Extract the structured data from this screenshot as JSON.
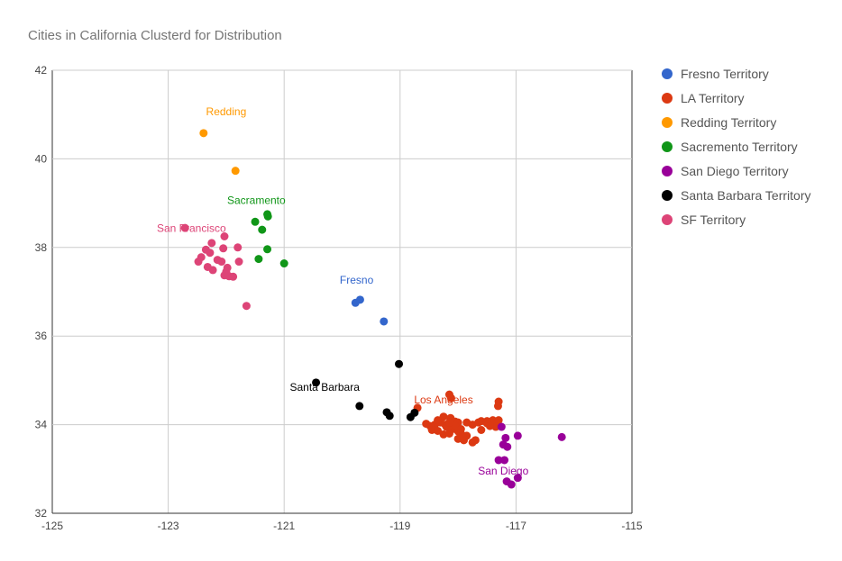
{
  "chart_data": {
    "type": "scatter",
    "title": "Cities in California Clusterd for Distribution",
    "xlabel": "",
    "ylabel": "",
    "xlim": [
      -125,
      -115
    ],
    "ylim": [
      32,
      42
    ],
    "x_ticks": [
      "-125",
      "-123",
      "-121",
      "-119",
      "-117",
      "-115"
    ],
    "y_ticks": [
      "32",
      "34",
      "36",
      "38",
      "40",
      "42"
    ],
    "x_tick_values": [
      -125,
      -123,
      -121,
      -119,
      -117,
      -115
    ],
    "y_tick_values": [
      32,
      34,
      36,
      38,
      40,
      42
    ],
    "grid": true,
    "legend_position": "right",
    "series": [
      {
        "name": "Fresno Territory",
        "color": "#3366cc",
        "label": "Fresno",
        "label_at": [
          -119.75,
          37.18
        ],
        "points": [
          [
            -119.77,
            36.75
          ],
          [
            -119.69,
            36.82
          ],
          [
            -119.28,
            36.33
          ]
        ]
      },
      {
        "name": "LA Territory",
        "color": "#dc3912",
        "label": "Los Angeles",
        "label_at": [
          -118.25,
          34.48
        ],
        "points": [
          [
            -118.15,
            34.68
          ],
          [
            -118.12,
            34.6
          ],
          [
            -118.7,
            34.38
          ],
          [
            -117.3,
            34.52
          ],
          [
            -117.31,
            34.42
          ],
          [
            -118.25,
            34.18
          ],
          [
            -118.13,
            34.15
          ],
          [
            -118.05,
            34.07
          ],
          [
            -118.3,
            34.05
          ],
          [
            -118.22,
            34.0
          ],
          [
            -118.4,
            34.0
          ],
          [
            -118.48,
            33.97
          ],
          [
            -118.55,
            34.02
          ],
          [
            -118.45,
            33.88
          ],
          [
            -118.35,
            33.86
          ],
          [
            -118.2,
            33.95
          ],
          [
            -118.1,
            33.9
          ],
          [
            -118.0,
            33.85
          ],
          [
            -117.95,
            33.8
          ],
          [
            -117.85,
            33.75
          ],
          [
            -117.9,
            33.65
          ],
          [
            -118.0,
            33.68
          ],
          [
            -117.75,
            33.6
          ],
          [
            -117.7,
            33.65
          ],
          [
            -118.0,
            34.05
          ],
          [
            -117.85,
            34.05
          ],
          [
            -117.75,
            34.0
          ],
          [
            -117.65,
            34.05
          ],
          [
            -117.6,
            34.08
          ],
          [
            -117.5,
            34.03
          ],
          [
            -117.4,
            34.1
          ],
          [
            -117.3,
            34.1
          ],
          [
            -117.35,
            33.95
          ],
          [
            -117.6,
            33.88
          ],
          [
            -118.25,
            33.78
          ],
          [
            -118.15,
            33.8
          ],
          [
            -117.92,
            33.72
          ],
          [
            -118.05,
            33.98
          ],
          [
            -118.15,
            34.05
          ],
          [
            -118.35,
            34.1
          ],
          [
            -117.5,
            34.08
          ],
          [
            -117.45,
            33.97
          ],
          [
            -117.95,
            33.9
          ]
        ]
      },
      {
        "name": "Redding Territory",
        "color": "#ff9900",
        "label": "Redding",
        "label_at": [
          -122.0,
          40.98
        ],
        "points": [
          [
            -122.39,
            40.58
          ],
          [
            -121.84,
            39.73
          ]
        ]
      },
      {
        "name": "Sacremento Territory",
        "color": "#109618",
        "label": "Sacramento",
        "label_at": [
          -121.48,
          38.98
        ],
        "points": [
          [
            -121.29,
            38.75
          ],
          [
            -121.28,
            38.7
          ],
          [
            -121.5,
            38.58
          ],
          [
            -121.38,
            38.4
          ],
          [
            -121.29,
            37.96
          ],
          [
            -121.44,
            37.74
          ],
          [
            -121.0,
            37.64
          ]
        ]
      },
      {
        "name": "San Diego Territory",
        "color": "#990099",
        "label": "San Diego",
        "label_at": [
          -117.22,
          32.87
        ],
        "points": [
          [
            -117.25,
            33.95
          ],
          [
            -116.97,
            33.75
          ],
          [
            -116.21,
            33.72
          ],
          [
            -117.18,
            33.7
          ],
          [
            -117.22,
            33.55
          ],
          [
            -117.15,
            33.5
          ],
          [
            -117.2,
            33.2
          ],
          [
            -117.3,
            33.2
          ],
          [
            -117.16,
            32.72
          ],
          [
            -117.08,
            32.65
          ],
          [
            -116.97,
            32.8
          ]
        ]
      },
      {
        "name": "Santa Barbara Territory",
        "color": "#000000",
        "label": "Santa Barbara",
        "label_at": [
          -120.3,
          34.76
        ],
        "points": [
          [
            -120.45,
            34.95
          ],
          [
            -119.02,
            35.37
          ],
          [
            -119.7,
            34.42
          ],
          [
            -119.23,
            34.28
          ],
          [
            -119.18,
            34.2
          ],
          [
            -118.75,
            34.27
          ],
          [
            -118.82,
            34.17
          ]
        ]
      },
      {
        "name": "SF Territory",
        "color": "#dd4477",
        "label": "San Francisco",
        "label_at": [
          -122.6,
          38.35
        ],
        "points": [
          [
            -122.71,
            38.44
          ],
          [
            -122.03,
            38.25
          ],
          [
            -122.25,
            38.1
          ],
          [
            -121.8,
            38.0
          ],
          [
            -122.05,
            37.98
          ],
          [
            -122.35,
            37.95
          ],
          [
            -122.28,
            37.88
          ],
          [
            -122.43,
            37.78
          ],
          [
            -122.48,
            37.68
          ],
          [
            -122.15,
            37.72
          ],
          [
            -122.08,
            37.68
          ],
          [
            -121.78,
            37.68
          ],
          [
            -122.32,
            37.56
          ],
          [
            -122.23,
            37.49
          ],
          [
            -121.98,
            37.54
          ],
          [
            -122.03,
            37.37
          ],
          [
            -121.95,
            37.35
          ],
          [
            -121.88,
            37.34
          ],
          [
            -122.0,
            37.45
          ],
          [
            -121.65,
            36.68
          ]
        ]
      }
    ]
  }
}
